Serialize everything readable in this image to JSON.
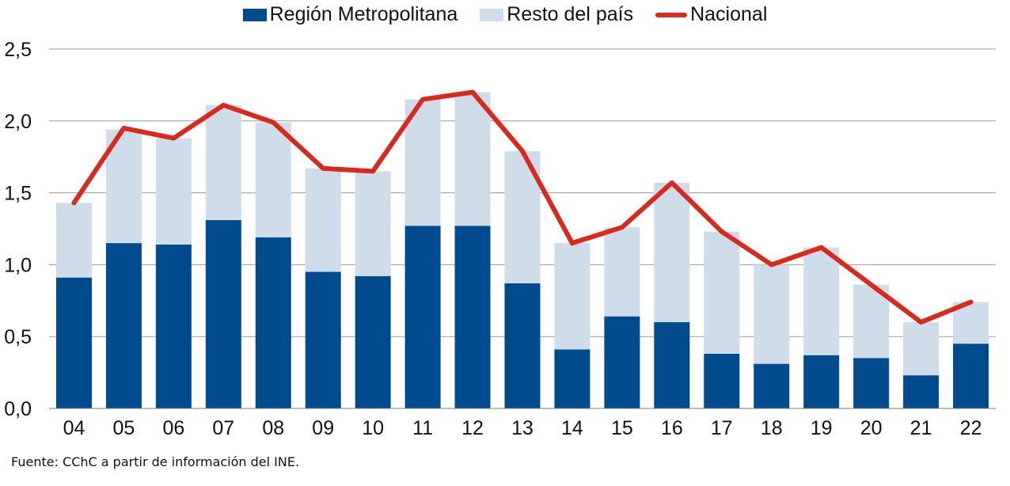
{
  "legend": {
    "series1": "Región Metropolitana",
    "series2": "Resto del país",
    "series3": "Nacional"
  },
  "source": "Fuente: CChC a partir de información del INE.",
  "colors": {
    "metropolitana": "#004b8d",
    "resto": "#cfdcea",
    "nacional": "#d9291c",
    "grid": "#9a9a9a"
  },
  "chart_data": {
    "type": "bar",
    "stacked": true,
    "categories": [
      "04",
      "05",
      "06",
      "07",
      "08",
      "09",
      "10",
      "11",
      "12",
      "13",
      "14",
      "15",
      "16",
      "17",
      "18",
      "19",
      "20",
      "21",
      "22"
    ],
    "series": [
      {
        "name": "Región Metropolitana",
        "type": "bar",
        "values": [
          0.91,
          1.15,
          1.14,
          1.31,
          1.19,
          0.95,
          0.92,
          1.27,
          1.27,
          0.87,
          0.41,
          0.64,
          0.6,
          0.38,
          0.31,
          0.37,
          0.35,
          0.23,
          0.45
        ]
      },
      {
        "name": "Resto del país",
        "type": "bar",
        "values": [
          0.52,
          0.79,
          0.74,
          0.8,
          0.8,
          0.72,
          0.73,
          0.88,
          0.93,
          0.92,
          0.74,
          0.62,
          0.97,
          0.85,
          0.69,
          0.75,
          0.51,
          0.37,
          0.29
        ]
      },
      {
        "name": "Nacional",
        "type": "line",
        "values": [
          1.43,
          1.95,
          1.88,
          2.11,
          1.99,
          1.67,
          1.65,
          2.15,
          2.2,
          1.79,
          1.15,
          1.26,
          1.57,
          1.23,
          1.0,
          1.12,
          0.86,
          0.6,
          0.74
        ]
      }
    ],
    "yticks": [
      "0,0",
      "0,5",
      "1,0",
      "1,5",
      "2,0",
      "2,5"
    ],
    "ylim": [
      0,
      2.5
    ],
    "grid": true,
    "legend_position": "top"
  }
}
